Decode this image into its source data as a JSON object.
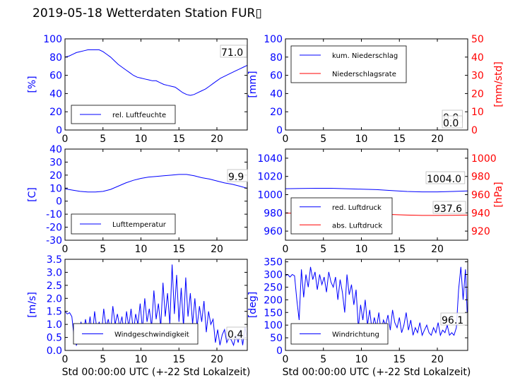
{
  "title": "2019-05-18 Wetterdaten Station FUR▯",
  "colors": {
    "left_axis": "#0000ff",
    "right_axis": "#ff0000",
    "series_blue": "#0000ff",
    "series_red": "#ff0000",
    "grid": "none"
  },
  "chart_data": [
    {
      "id": "humidity",
      "type": "line",
      "xlabel": "",
      "ylabel": "[%]",
      "xlim": [
        0,
        24
      ],
      "ylim": [
        0,
        100
      ],
      "xticks": [
        0,
        5,
        10,
        15,
        20
      ],
      "yticks": [
        0,
        20,
        40,
        60,
        80,
        100
      ],
      "legend": {
        "placement": "lower-left",
        "entries": [
          "rel. Luftfeuchte"
        ]
      },
      "annotations": [
        "71.0"
      ],
      "series": [
        {
          "name": "rel. Luftfeuchte",
          "color": "#0000ff",
          "x": [
            0,
            0.5,
            1,
            1.5,
            2,
            2.5,
            3,
            3.5,
            4,
            4.5,
            5,
            5.5,
            6,
            6.5,
            7,
            7.5,
            8,
            8.5,
            9,
            9.5,
            10,
            10.5,
            11,
            11.5,
            12,
            12.5,
            13,
            13.5,
            14,
            14.5,
            15,
            15.5,
            16,
            16.5,
            17,
            17.5,
            18,
            18.5,
            19,
            19.5,
            20,
            20.5,
            21,
            21.5,
            22,
            22.5,
            23,
            23.5,
            24
          ],
          "y": [
            80,
            81,
            83,
            85,
            86,
            87,
            88,
            88,
            88,
            88,
            86,
            83,
            80,
            76,
            72,
            69,
            66,
            63,
            60,
            58,
            57,
            56,
            55,
            54,
            54,
            52,
            50,
            49,
            48,
            47,
            44,
            41,
            39,
            38,
            39,
            41,
            43,
            45,
            48,
            51,
            54,
            57,
            59,
            61,
            63,
            65,
            67,
            69,
            71
          ]
        }
      ]
    },
    {
      "id": "precip",
      "type": "line",
      "xlabel": "",
      "ylabel": "[mm]",
      "ylabel_right": "[mm/std]",
      "xlim": [
        0,
        24
      ],
      "ylim": [
        0,
        100
      ],
      "ylim_right": [
        0,
        50
      ],
      "xticks": [
        0,
        5,
        10,
        15,
        20
      ],
      "yticks": [
        0,
        20,
        40,
        60,
        80,
        100
      ],
      "yticks_right": [
        0,
        10,
        20,
        30,
        40,
        50
      ],
      "legend": {
        "placement": "upper-left",
        "entries": [
          "kum. Niederschlag",
          "Niederschlagsrate"
        ]
      },
      "annotations": [
        "0.0",
        "0.0"
      ],
      "series": [
        {
          "name": "kum. Niederschlag",
          "color": "#0000ff",
          "x": [
            0,
            24
          ],
          "y": [
            0,
            0
          ]
        },
        {
          "name": "Niederschlagsrate",
          "color": "#ff0000",
          "x": [
            0,
            24
          ],
          "y": [
            0,
            0
          ]
        }
      ]
    },
    {
      "id": "temperature",
      "type": "line",
      "xlabel": "",
      "ylabel": "[C]",
      "xlim": [
        0,
        24
      ],
      "ylim": [
        -30,
        40
      ],
      "xticks": [
        0,
        5,
        10,
        15,
        20
      ],
      "yticks": [
        -30,
        -20,
        -10,
        0,
        10,
        20,
        30,
        40
      ],
      "legend": {
        "placement": "lower-left",
        "entries": [
          "Lufttemperatur"
        ]
      },
      "annotations": [
        "9.9"
      ],
      "series": [
        {
          "name": "Lufttemperatur",
          "color": "#0000ff",
          "x": [
            0,
            1,
            2,
            3,
            4,
            5,
            6,
            7,
            8,
            9,
            10,
            11,
            12,
            13,
            14,
            15,
            16,
            17,
            18,
            19,
            20,
            21,
            22,
            23,
            24
          ],
          "y": [
            9.5,
            8.5,
            7.5,
            7,
            7,
            7.5,
            9,
            11.5,
            14,
            16,
            17.5,
            18.5,
            19,
            19.5,
            20,
            20.5,
            20.5,
            19.5,
            18,
            17,
            15.5,
            14,
            13,
            11.5,
            9.9
          ]
        }
      ]
    },
    {
      "id": "pressure",
      "type": "line",
      "xlabel": "",
      "ylabel": "",
      "ylabel_right": "[hPa]",
      "xlim": [
        0,
        24
      ],
      "ylim": [
        950,
        1050
      ],
      "ylim_right": [
        910,
        1010
      ],
      "xticks": [
        0,
        5,
        10,
        15,
        20
      ],
      "yticks": [
        960,
        980,
        1000,
        1020,
        1040
      ],
      "yticks_right": [
        920,
        940,
        960,
        980,
        1000
      ],
      "legend": {
        "placement": "lower-left",
        "entries": [
          "red. Luftdruck",
          "abs. Luftdruck"
        ]
      },
      "annotations": [
        "1004.0",
        "937.6"
      ],
      "series": [
        {
          "name": "red. Luftdruck",
          "color": "#0000ff",
          "axis": "left",
          "x": [
            0,
            2,
            4,
            6,
            8,
            10,
            12,
            14,
            16,
            18,
            20,
            22,
            24
          ],
          "y": [
            1006.5,
            1006.8,
            1007,
            1007,
            1006.5,
            1006,
            1005.5,
            1004.5,
            1003.5,
            1003,
            1003,
            1003.5,
            1004
          ]
        },
        {
          "name": "abs. Luftdruck",
          "color": "#ff0000",
          "axis": "right",
          "x": [
            0,
            2,
            4,
            6,
            8,
            10,
            12,
            14,
            16,
            18,
            20,
            22,
            24
          ],
          "y": [
            939.6,
            939.8,
            940,
            940,
            939.6,
            939.2,
            938.8,
            938.2,
            937.6,
            937.2,
            937.2,
            937.4,
            937.6
          ]
        }
      ]
    },
    {
      "id": "windspeed",
      "type": "line",
      "xlabel": "Std 00:00:00 UTC (+-22 Std Lokalzeit)",
      "ylabel": "[m/s]",
      "xlim": [
        0,
        24
      ],
      "ylim": [
        0,
        3.5
      ],
      "xticks": [
        0,
        5,
        10,
        15,
        20
      ],
      "yticks": [
        0,
        0.5,
        1.0,
        1.5,
        2.0,
        2.5,
        3.0,
        3.5
      ],
      "legend": {
        "placement": "lower-center",
        "entries": [
          "Windgeschwindigkeit"
        ]
      },
      "annotations": [
        "0.4"
      ],
      "series": [
        {
          "name": "Windgeschwindigkeit",
          "color": "#0000ff",
          "x": [
            0,
            0.3,
            0.6,
            0.9,
            1.2,
            1.5,
            1.8,
            2.1,
            2.4,
            2.7,
            3.0,
            3.3,
            3.6,
            3.9,
            4.2,
            4.5,
            4.8,
            5.1,
            5.4,
            5.7,
            6.0,
            6.3,
            6.6,
            6.9,
            7.2,
            7.5,
            7.8,
            8.1,
            8.4,
            8.7,
            9.0,
            9.3,
            9.6,
            9.9,
            10.2,
            10.5,
            10.8,
            11.1,
            11.4,
            11.7,
            12.0,
            12.3,
            12.6,
            12.9,
            13.2,
            13.5,
            13.8,
            14.1,
            14.4,
            14.7,
            15.0,
            15.3,
            15.6,
            15.9,
            16.2,
            16.5,
            16.8,
            17.1,
            17.4,
            17.7,
            18.0,
            18.3,
            18.6,
            18.9,
            19.2,
            19.5,
            19.8,
            20.1,
            20.4,
            20.7,
            21.0,
            21.3,
            21.6,
            21.9,
            22.2,
            22.5,
            22.8,
            23.1,
            23.4,
            23.7,
            24.0
          ],
          "y": [
            1.5,
            1.4,
            1.45,
            1.3,
            0.5,
            0.2,
            0.4,
            1.1,
            0.6,
            1.2,
            0.7,
            1.3,
            0.5,
            1.5,
            0.8,
            1.1,
            0.6,
            1.6,
            0.9,
            1.2,
            0.7,
            1.7,
            1.0,
            1.4,
            0.9,
            1.3,
            0.6,
            1.5,
            0.9,
            1.6,
            0.7,
            1.4,
            1.0,
            1.8,
            0.8,
            2.0,
            1.1,
            1.6,
            0.9,
            2.3,
            1.2,
            1.8,
            0.9,
            2.6,
            1.3,
            2.2,
            1.0,
            3.3,
            1.4,
            2.9,
            1.1,
            2.4,
            0.9,
            2.8,
            1.3,
            2.2,
            1.0,
            2.0,
            0.9,
            1.7,
            1.1,
            1.9,
            0.7,
            1.5,
            1.0,
            1.2,
            0.3,
            0.8,
            0.2,
            0.6,
            0.8,
            0.3,
            0.5,
            0.4,
            0.2,
            0.6,
            0.3,
            0.8,
            0.2,
            0.9,
            0.4
          ]
        }
      ]
    },
    {
      "id": "winddir",
      "type": "line",
      "xlabel": "Std 00:00:00 UTC (+-22 Std Lokalzeit)",
      "ylabel": "[deg]",
      "xlim": [
        0,
        24
      ],
      "ylim": [
        0,
        360
      ],
      "xticks": [
        0,
        5,
        10,
        15,
        20
      ],
      "yticks": [
        0,
        50,
        100,
        150,
        200,
        250,
        300,
        350
      ],
      "legend": {
        "placement": "lower-left",
        "entries": [
          "Windrichtung"
        ]
      },
      "annotations": [
        "96.1"
      ],
      "series": [
        {
          "name": "Windrichtung",
          "color": "#0000ff",
          "x": [
            0,
            0.3,
            0.6,
            0.9,
            1.2,
            1.5,
            1.8,
            2.1,
            2.4,
            2.7,
            3.0,
            3.3,
            3.6,
            3.9,
            4.2,
            4.5,
            4.8,
            5.1,
            5.4,
            5.7,
            6.0,
            6.3,
            6.6,
            6.9,
            7.2,
            7.5,
            7.8,
            8.1,
            8.4,
            8.7,
            9.0,
            9.3,
            9.6,
            9.9,
            10.2,
            10.5,
            10.8,
            11.1,
            11.4,
            11.7,
            12.0,
            12.3,
            12.6,
            12.9,
            13.2,
            13.5,
            13.8,
            14.1,
            14.4,
            14.7,
            15.0,
            15.3,
            15.6,
            15.9,
            16.2,
            16.5,
            16.8,
            17.1,
            17.4,
            17.7,
            18.0,
            18.3,
            18.6,
            18.9,
            19.2,
            19.5,
            19.8,
            20.1,
            20.4,
            20.7,
            21.0,
            21.3,
            21.6,
            21.9,
            22.2,
            22.5,
            22.8,
            23.1,
            23.4,
            23.7,
            24.0
          ],
          "y": [
            295,
            300,
            290,
            300,
            295,
            200,
            120,
            320,
            210,
            300,
            250,
            330,
            280,
            310,
            240,
            300,
            260,
            290,
            230,
            310,
            270,
            250,
            290,
            200,
            280,
            230,
            150,
            300,
            220,
            260,
            180,
            240,
            90,
            180,
            120,
            200,
            100,
            160,
            80,
            130,
            90,
            150,
            70,
            120,
            100,
            140,
            80,
            160,
            110,
            90,
            130,
            70,
            100,
            150,
            80,
            120,
            60,
            90,
            70,
            110,
            60,
            80,
            100,
            70,
            60,
            90,
            70,
            110,
            60,
            80,
            70,
            100,
            60,
            70,
            60,
            90,
            240,
            330,
            200,
            320,
            96
          ]
        }
      ]
    }
  ]
}
